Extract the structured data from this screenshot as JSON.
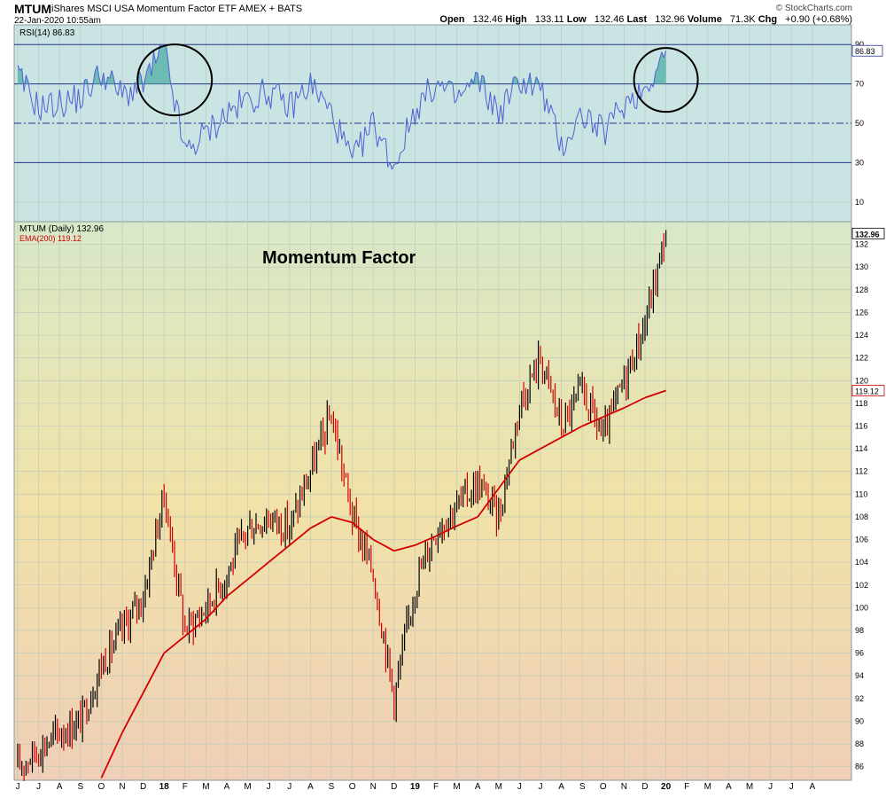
{
  "header": {
    "symbol": "MTUM",
    "description": "iShares MSCI USA Momentum Factor ETF",
    "exchange": "AMEX + BATS",
    "datetime": "22-Jan-2020 10:55am",
    "brand": "© StockCharts.com",
    "open_label": "Open",
    "open": "132.46",
    "high_label": "High",
    "high": "133.11",
    "low_label": "Low",
    "low": "132.46",
    "last_label": "Last",
    "last": "132.96",
    "volume_label": "Volume",
    "volume": "71.3K",
    "chg_label": "Chg",
    "chg": "+0.90 (+0.68%)"
  },
  "colors": {
    "rsi_bg": "#c9e4e2",
    "price_bg_top": "#d8e8c8",
    "price_bg_mid": "#f0e2a8",
    "price_bg_bottom": "#efcfb8",
    "rsi_line": "#4f5fd6",
    "rsi_fill": "#5cb5ad",
    "level_line": "#27348b",
    "ema": "#d40000",
    "candle_up": "#000000",
    "candle_down": "#d40000",
    "grid": "#b9c7b9",
    "circle": "#000000"
  },
  "chart_data": [
    {
      "type": "line",
      "title": "RSI(14) 86.83",
      "legend": "RSI(14) 86.83",
      "series": [
        {
          "name": "RSI(14)",
          "x": [
            "2017-06",
            "2017-07",
            "2017-08",
            "2017-09",
            "2017-10",
            "2017-11",
            "2017-12",
            "2018-01",
            "2018-02",
            "2018-03",
            "2018-04",
            "2018-05",
            "2018-06",
            "2018-07",
            "2018-08",
            "2018-09",
            "2018-10",
            "2018-11",
            "2018-12",
            "2019-01",
            "2019-02",
            "2019-03",
            "2019-04",
            "2019-05",
            "2019-06",
            "2019-07",
            "2019-08",
            "2019-09",
            "2019-10",
            "2019-11",
            "2019-12",
            "2020-01"
          ],
          "values": [
            74,
            58,
            60,
            63,
            76,
            64,
            70,
            88,
            35,
            45,
            55,
            62,
            66,
            58,
            70,
            55,
            30,
            50,
            28,
            57,
            70,
            62,
            72,
            55,
            72,
            68,
            38,
            55,
            45,
            60,
            68,
            86.83
          ]
        }
      ],
      "levels": [
        30,
        50,
        70,
        90
      ],
      "yticks": [
        10,
        30,
        50,
        70,
        90
      ],
      "last_value_tag": "86.83",
      "ylim": [
        0,
        100
      ],
      "grid": true
    },
    {
      "type": "line",
      "title": "Momentum Factor",
      "legend": [
        "MTUM (Daily) 132.96",
        "EMA(200) 119.12"
      ],
      "x": [
        "2017-06",
        "2017-07",
        "2017-08",
        "2017-09",
        "2017-10",
        "2017-11",
        "2017-12",
        "2018-01",
        "2018-02",
        "2018-03",
        "2018-04",
        "2018-05",
        "2018-06",
        "2018-07",
        "2018-08",
        "2018-09",
        "2018-10",
        "2018-11",
        "2018-12",
        "2019-01",
        "2019-02",
        "2019-03",
        "2019-04",
        "2019-05",
        "2019-06",
        "2019-07",
        "2019-08",
        "2019-09",
        "2019-10",
        "2019-11",
        "2019-12",
        "2020-01"
      ],
      "series": [
        {
          "name": "MTUM (Daily)",
          "values": [
            86,
            87.5,
            89,
            90,
            95,
            98,
            101,
            110,
            98,
            100,
            103,
            107,
            108,
            107,
            112,
            117,
            108,
            103,
            92,
            102,
            107,
            109,
            111,
            108,
            118,
            122,
            116,
            119,
            115,
            120,
            125,
            132.96
          ]
        },
        {
          "name": "EMA(200)",
          "values": [
            null,
            null,
            null,
            null,
            85,
            89,
            92.5,
            96,
            97.5,
            99,
            101,
            102.5,
            104,
            105.5,
            107,
            108,
            107.5,
            106,
            105,
            105.5,
            106.3,
            107.2,
            108,
            110.5,
            113,
            114,
            115,
            116,
            116.8,
            117.6,
            118.5,
            119.12
          ]
        }
      ],
      "price_last_tag": "132.96",
      "ema_last_tag": "119.12",
      "yticks": [
        86,
        88,
        90,
        92,
        94,
        96,
        98,
        100,
        102,
        104,
        106,
        108,
        110,
        112,
        114,
        116,
        118,
        120,
        122,
        124,
        126,
        128,
        130,
        132
      ],
      "ylim": [
        84.8,
        134
      ],
      "xtick_labels": [
        "J",
        "J",
        "A",
        "S",
        "O",
        "N",
        "D",
        "18",
        "F",
        "M",
        "A",
        "M",
        "J",
        "J",
        "A",
        "S",
        "O",
        "N",
        "D",
        "19",
        "F",
        "M",
        "A",
        "M",
        "J",
        "J",
        "A",
        "S",
        "O",
        "N",
        "D",
        "20",
        "F",
        "M",
        "A",
        "M",
        "J",
        "J",
        "A"
      ],
      "grid": true
    }
  ]
}
